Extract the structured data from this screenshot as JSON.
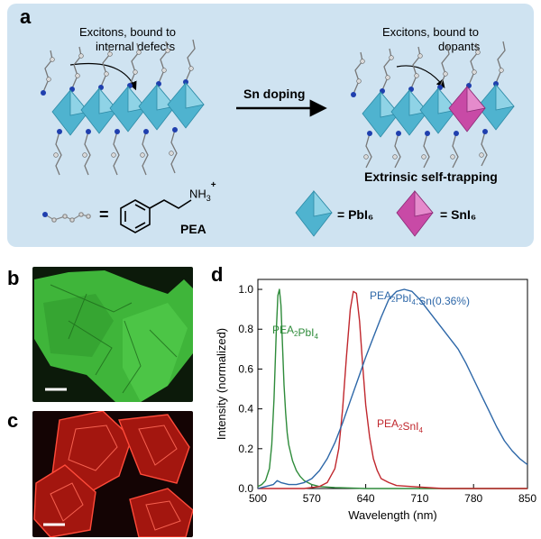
{
  "panel_a": {
    "label": "a",
    "note_left": [
      "Excitons, bound to",
      "internal defects"
    ],
    "note_right": [
      "Excitons, bound to",
      "dopants"
    ],
    "arrow_label": "Sn doping",
    "caption_right": "Extrinsic self-trapping",
    "legend_equals": "=",
    "pea_ammonium": "NH",
    "pea_sub": "3",
    "pea_sup": "+",
    "pea_name": "PEA",
    "legend_pb": "= PbI₆",
    "legend_sn": "= SnI₆",
    "colors": {
      "pb_octahedron": "#4fb3cf",
      "sn_octahedron": "#c84aa6",
      "background": "#cfe3f1"
    }
  },
  "panel_b": {
    "label": "b",
    "color": "#3fb53a"
  },
  "panel_c": {
    "label": "c",
    "color": "#d9261c"
  },
  "panel_d": {
    "label": "d"
  },
  "chart_data": {
    "type": "line",
    "xlabel": "Wavelength (nm)",
    "ylabel": "Intensity (normalized)",
    "xlim": [
      500,
      850
    ],
    "ylim": [
      0,
      1.05
    ],
    "xticks": [
      "500",
      "570",
      "640",
      "710",
      "780",
      "850"
    ],
    "yticks": [
      "0.0",
      "0.2",
      "0.4",
      "0.6",
      "0.8",
      "1.0"
    ],
    "series": [
      {
        "name": "PEA2PbI4",
        "label_main": "PEA",
        "label_sub1": "2",
        "label_mid": "PbI",
        "label_sub2": "4",
        "color": "#2e8b3a",
        "x": [
          500,
          505,
          510,
          515,
          518,
          521,
          524,
          526,
          528,
          530,
          532,
          534,
          536,
          538,
          540,
          545,
          550,
          555,
          560,
          570,
          580,
          600,
          640,
          700,
          780,
          850
        ],
        "y": [
          0.01,
          0.02,
          0.04,
          0.1,
          0.22,
          0.45,
          0.8,
          0.97,
          1.0,
          0.92,
          0.72,
          0.52,
          0.38,
          0.28,
          0.22,
          0.14,
          0.09,
          0.06,
          0.04,
          0.02,
          0.01,
          0.005,
          0.0,
          0.0,
          0.0,
          0.0
        ]
      },
      {
        "name": "PEA2SnI4",
        "label_main": "PEA",
        "label_sub1": "2",
        "label_mid": "SnI",
        "label_sub2": "4",
        "color": "#c0272d",
        "x": [
          500,
          560,
          580,
          590,
          600,
          605,
          610,
          615,
          620,
          624,
          628,
          632,
          636,
          640,
          645,
          650,
          655,
          660,
          670,
          680,
          700,
          740,
          800,
          850
        ],
        "y": [
          0.0,
          0.0,
          0.01,
          0.03,
          0.1,
          0.2,
          0.4,
          0.66,
          0.9,
          0.99,
          0.98,
          0.84,
          0.62,
          0.42,
          0.26,
          0.15,
          0.09,
          0.05,
          0.03,
          0.015,
          0.01,
          0.0,
          0.0,
          0.0
        ]
      },
      {
        "name": "PEA2PbI4:Sn(0.36%)",
        "label_main": "PEA",
        "label_sub1": "2",
        "label_mid": "PbI",
        "label_sub2": "4",
        "label_tail": ":Sn(0.36%)",
        "color": "#2d67a8",
        "x": [
          500,
          510,
          520,
          525,
          530,
          540,
          550,
          560,
          570,
          580,
          590,
          600,
          610,
          620,
          630,
          640,
          650,
          660,
          670,
          680,
          690,
          700,
          710,
          720,
          730,
          740,
          750,
          760,
          770,
          780,
          790,
          800,
          810,
          820,
          830,
          840,
          850
        ],
        "y": [
          0.0,
          0.01,
          0.02,
          0.04,
          0.03,
          0.02,
          0.02,
          0.03,
          0.05,
          0.09,
          0.15,
          0.23,
          0.33,
          0.44,
          0.55,
          0.66,
          0.76,
          0.86,
          0.95,
          0.99,
          1.0,
          0.99,
          0.95,
          0.9,
          0.85,
          0.8,
          0.75,
          0.7,
          0.63,
          0.55,
          0.47,
          0.39,
          0.31,
          0.24,
          0.19,
          0.15,
          0.12
        ]
      }
    ]
  }
}
